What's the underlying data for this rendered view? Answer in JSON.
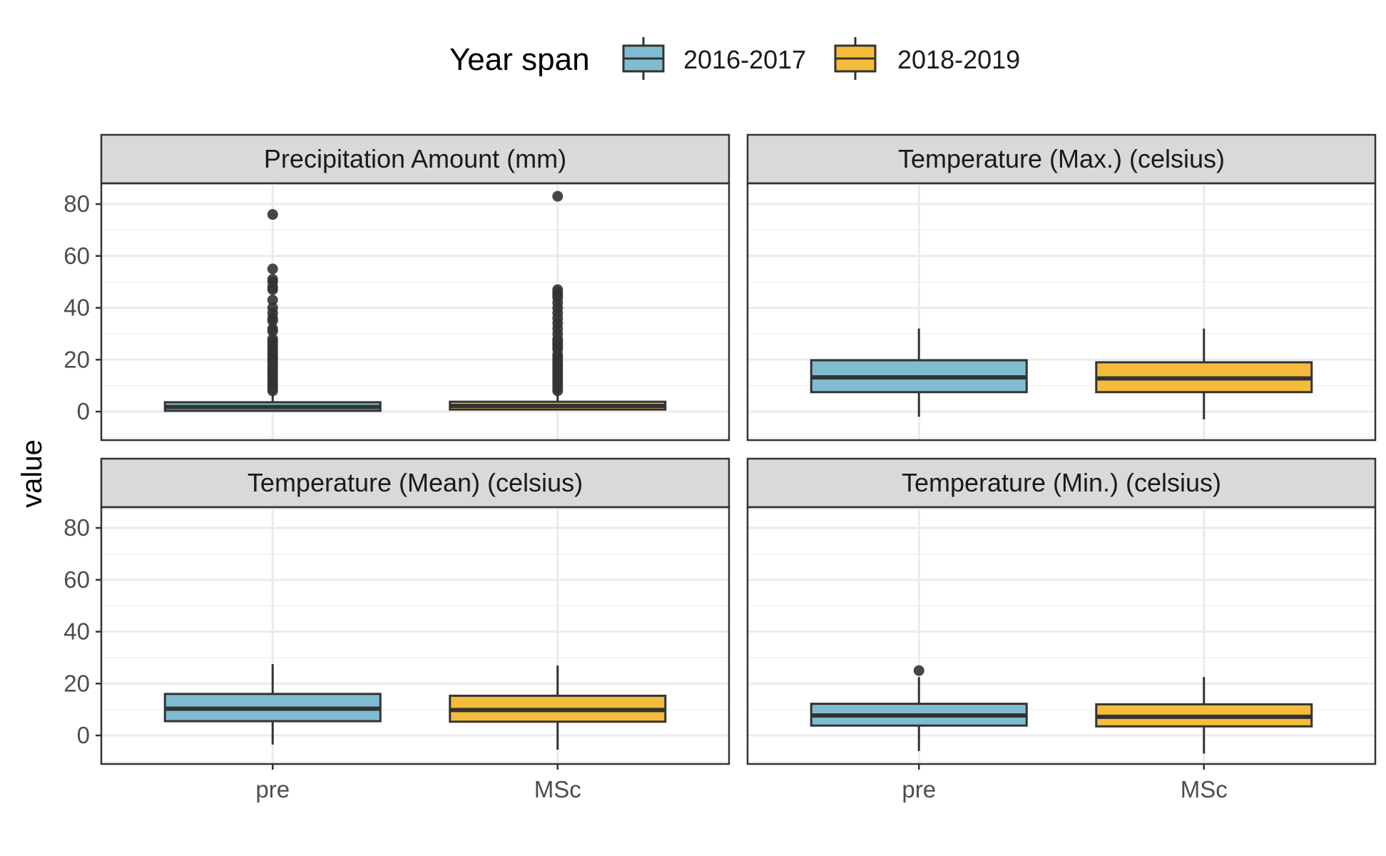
{
  "chart_data": {
    "type": "boxplot",
    "layout": "facet-grid-2x2",
    "ylabel": "value",
    "xlabel": "",
    "ylim": [
      -11,
      88
    ],
    "yticks": [
      0,
      20,
      40,
      60,
      80
    ],
    "grid": true,
    "categories": [
      "pre",
      "MSc"
    ],
    "legend": {
      "title": "Year span",
      "position": "top",
      "entries": [
        {
          "label": "2016-2017",
          "color": "#7FBCD2"
        },
        {
          "label": "2018-2019",
          "color": "#F5BC3C"
        }
      ]
    },
    "colors": {
      "pre": "#7FBCD2",
      "MSc": "#F5BC3C",
      "outline": "#333333",
      "strip_bg": "#D9D9D9"
    },
    "panels": [
      {
        "title": "Precipitation Amount (mm)",
        "boxes": [
          {
            "category": "pre",
            "whisker_low": 0,
            "q1": 0.3,
            "median": 1.8,
            "q3": 3.6,
            "whisker_high": 8.5,
            "outliers": [
              76,
              55,
              51,
              50,
              48,
              47,
              43,
              40,
              38,
              36,
              35,
              32,
              31,
              28,
              27,
              26,
              25,
              24,
              23,
              22,
              21,
              20,
              19,
              18,
              17,
              16,
              15,
              14,
              13,
              12,
              11,
              10,
              9,
              8
            ]
          },
          {
            "category": "MSc",
            "whisker_low": 0.5,
            "q1": 0.8,
            "median": 2.2,
            "q3": 3.8,
            "whisker_high": 8.5,
            "outliers": [
              83,
              47,
              46,
              45,
              44,
              42,
              40,
              38,
              36,
              34,
              32,
              30,
              28,
              27,
              26,
              25,
              24,
              22,
              21,
              20,
              19,
              18,
              17,
              16,
              15,
              14,
              13,
              12,
              11,
              10,
              9,
              8
            ]
          }
        ]
      },
      {
        "title": "Temperature (Max.) (celsius)",
        "boxes": [
          {
            "category": "pre",
            "whisker_low": -2,
            "q1": 7.5,
            "median": 13.2,
            "q3": 19.8,
            "whisker_high": 32,
            "outliers": []
          },
          {
            "category": "MSc",
            "whisker_low": -3,
            "q1": 7.5,
            "median": 12.8,
            "q3": 19.0,
            "whisker_high": 32,
            "outliers": []
          }
        ]
      },
      {
        "title": "Temperature (Mean) (celsius)",
        "boxes": [
          {
            "category": "pre",
            "whisker_low": -3.5,
            "q1": 5.5,
            "median": 10.3,
            "q3": 16.0,
            "whisker_high": 27.5,
            "outliers": []
          },
          {
            "category": "MSc",
            "whisker_low": -5.5,
            "q1": 5.3,
            "median": 9.8,
            "q3": 15.3,
            "whisker_high": 27,
            "outliers": []
          }
        ]
      },
      {
        "title": "Temperature (Min.) (celsius)",
        "boxes": [
          {
            "category": "pre",
            "whisker_low": -6,
            "q1": 3.8,
            "median": 7.7,
            "q3": 12.2,
            "whisker_high": 22.5,
            "outliers": [
              25
            ]
          },
          {
            "category": "MSc",
            "whisker_low": -7,
            "q1": 3.5,
            "median": 7.2,
            "q3": 12.0,
            "whisker_high": 22.5,
            "outliers": []
          }
        ]
      }
    ]
  }
}
